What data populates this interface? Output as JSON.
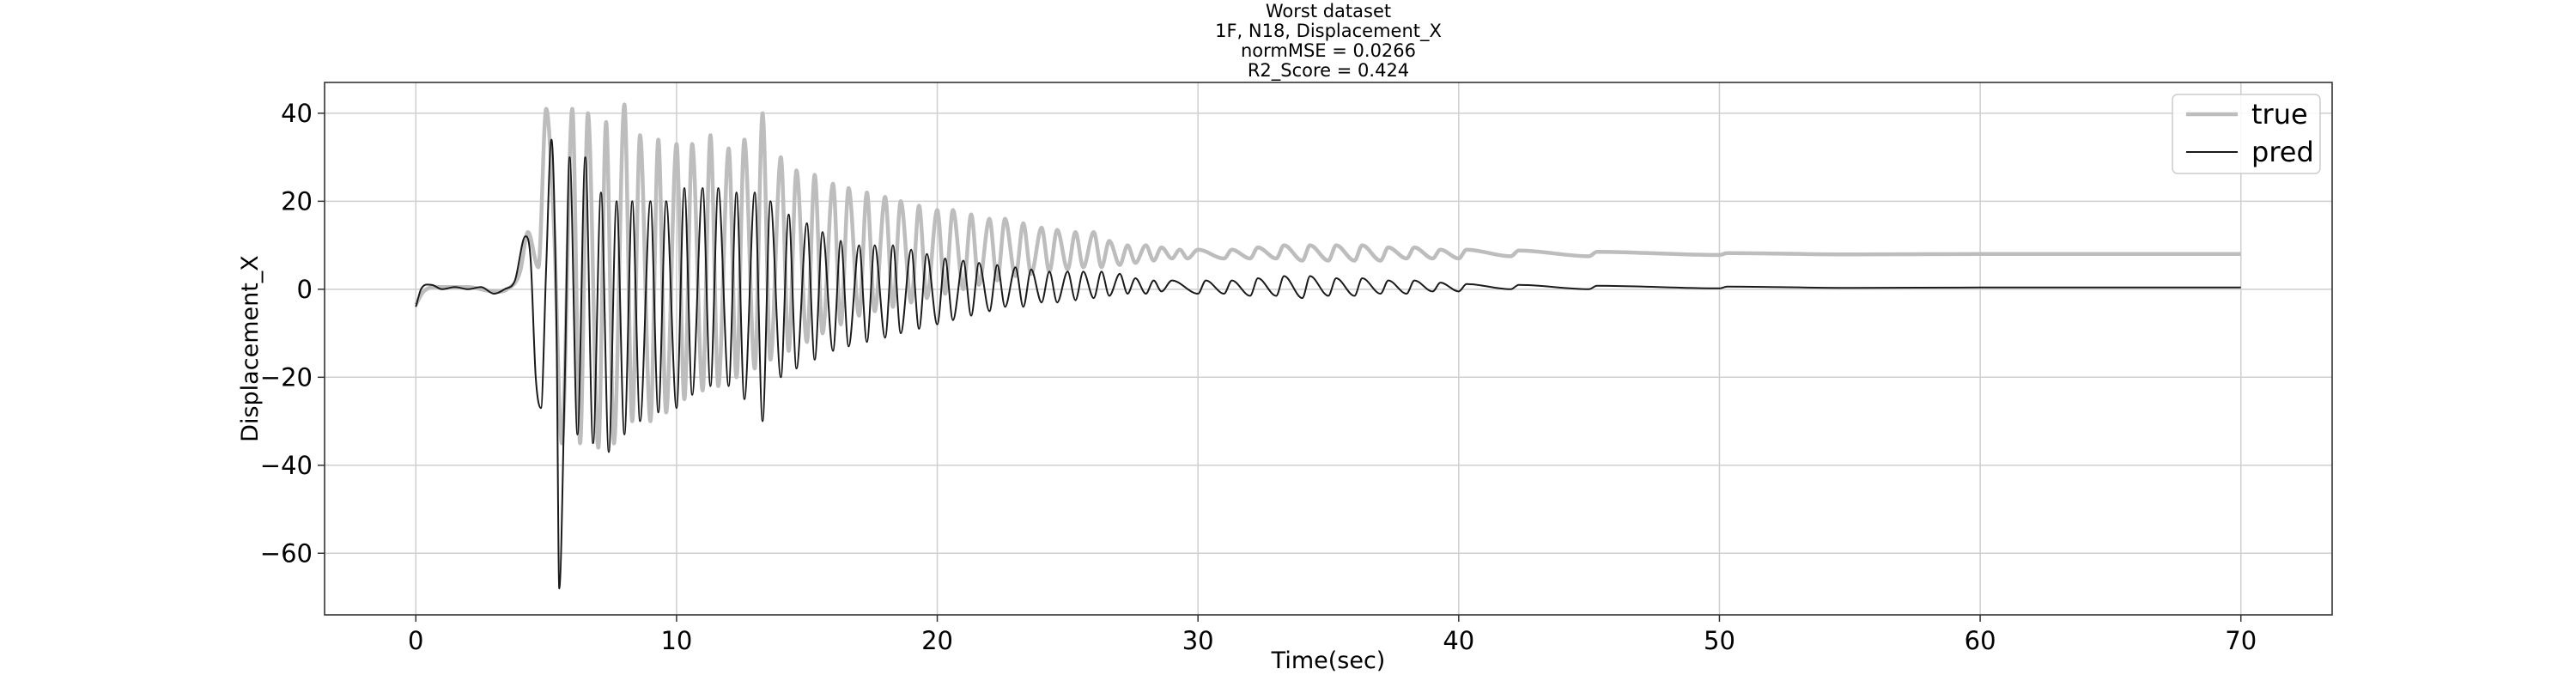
{
  "chart_data": {
    "type": "line",
    "title_lines": [
      "Worst dataset",
      "1F, N18, Displacement_X",
      "normMSE = 0.0266",
      "R2_Score = 0.424"
    ],
    "xlabel": "Time(sec)",
    "ylabel": "Displacement_X",
    "xlim": [
      -3.5,
      73.5
    ],
    "ylim": [
      -74,
      47
    ],
    "xticks": [
      0,
      10,
      20,
      30,
      40,
      50,
      60,
      70
    ],
    "yticks": [
      -60,
      -40,
      -20,
      0,
      20,
      40
    ],
    "grid": true,
    "legend_position": "top-right",
    "series": [
      {
        "name": "true",
        "color": "#bdbdbd",
        "points": [
          [
            0,
            -3.5
          ],
          [
            0.3,
            -0.5
          ],
          [
            1,
            0.5
          ],
          [
            2,
            0.5
          ],
          [
            3,
            -0.5
          ],
          [
            3.5,
            0
          ],
          [
            4,
            4
          ],
          [
            4.3,
            13
          ],
          [
            4.7,
            5
          ],
          [
            5,
            41
          ],
          [
            5.3,
            14
          ],
          [
            5.6,
            -35
          ],
          [
            6,
            41
          ],
          [
            6.3,
            -35
          ],
          [
            6.6,
            40
          ],
          [
            7,
            -36
          ],
          [
            7.3,
            38
          ],
          [
            7.6,
            -35
          ],
          [
            8,
            42
          ],
          [
            8.3,
            -30
          ],
          [
            8.6,
            35
          ],
          [
            9,
            -30
          ],
          [
            9.3,
            34
          ],
          [
            9.6,
            -28
          ],
          [
            10,
            33
          ],
          [
            10.3,
            -25
          ],
          [
            10.6,
            33
          ],
          [
            11,
            -23
          ],
          [
            11.3,
            35
          ],
          [
            11.6,
            -22
          ],
          [
            12,
            32
          ],
          [
            12.3,
            -20
          ],
          [
            12.6,
            34
          ],
          [
            13,
            -18
          ],
          [
            13.3,
            40
          ],
          [
            13.6,
            -16
          ],
          [
            14,
            30
          ],
          [
            14.3,
            -14
          ],
          [
            14.6,
            27
          ],
          [
            15,
            -12
          ],
          [
            15.3,
            26
          ],
          [
            15.6,
            -10
          ],
          [
            16,
            24
          ],
          [
            16.3,
            -8
          ],
          [
            16.6,
            23
          ],
          [
            17,
            -6
          ],
          [
            17.3,
            22
          ],
          [
            17.6,
            -5
          ],
          [
            18,
            21
          ],
          [
            18.3,
            -4
          ],
          [
            18.6,
            20
          ],
          [
            19,
            -3
          ],
          [
            19.3,
            19
          ],
          [
            19.6,
            -2
          ],
          [
            20,
            18
          ],
          [
            20.3,
            -1
          ],
          [
            20.6,
            18
          ],
          [
            21,
            0
          ],
          [
            21.3,
            17
          ],
          [
            21.6,
            1
          ],
          [
            22,
            16
          ],
          [
            22.3,
            2
          ],
          [
            22.6,
            16
          ],
          [
            23,
            3
          ],
          [
            23.3,
            15
          ],
          [
            23.6,
            3.5
          ],
          [
            24,
            14
          ],
          [
            24.3,
            4
          ],
          [
            24.6,
            13.5
          ],
          [
            25,
            4.5
          ],
          [
            25.3,
            13
          ],
          [
            25.6,
            5
          ],
          [
            26,
            13
          ],
          [
            26.3,
            5
          ],
          [
            26.6,
            11
          ],
          [
            27,
            5.5
          ],
          [
            27.3,
            10
          ],
          [
            27.6,
            6
          ],
          [
            28,
            10
          ],
          [
            28.3,
            6.5
          ],
          [
            28.6,
            9.5
          ],
          [
            29,
            7
          ],
          [
            29.3,
            9
          ],
          [
            29.6,
            7
          ],
          [
            30,
            9
          ],
          [
            31,
            7
          ],
          [
            31.3,
            9
          ],
          [
            32,
            7
          ],
          [
            32.3,
            9.5
          ],
          [
            33,
            7
          ],
          [
            33.3,
            10
          ],
          [
            34,
            6.5
          ],
          [
            34.3,
            10
          ],
          [
            35,
            6.5
          ],
          [
            35.3,
            10
          ],
          [
            36,
            6.5
          ],
          [
            36.3,
            10
          ],
          [
            37,
            6.5
          ],
          [
            37.3,
            9.5
          ],
          [
            38,
            7
          ],
          [
            38.3,
            9.5
          ],
          [
            39,
            7
          ],
          [
            39.3,
            9
          ],
          [
            40,
            7
          ],
          [
            40.3,
            9
          ],
          [
            42,
            7.5
          ],
          [
            42.3,
            8.8
          ],
          [
            45,
            7.5
          ],
          [
            45.3,
            8.5
          ],
          [
            50,
            7.8
          ],
          [
            50.3,
            8.2
          ],
          [
            55,
            7.9
          ],
          [
            60,
            8
          ],
          [
            65,
            8
          ],
          [
            70,
            8
          ]
        ]
      },
      {
        "name": "pred",
        "color": "#1a1a1a",
        "points": [
          [
            0,
            -4
          ],
          [
            0.2,
            0
          ],
          [
            0.6,
            1
          ],
          [
            1,
            0
          ],
          [
            1.5,
            0.5
          ],
          [
            2,
            0
          ],
          [
            2.5,
            0.5
          ],
          [
            3,
            -1
          ],
          [
            3.4,
            0
          ],
          [
            3.8,
            2
          ],
          [
            4.2,
            12
          ],
          [
            4.4,
            7
          ],
          [
            4.6,
            -20
          ],
          [
            4.8,
            -27
          ],
          [
            5,
            5
          ],
          [
            5.2,
            34
          ],
          [
            5.4,
            -10
          ],
          [
            5.5,
            -68
          ],
          [
            5.7,
            -25
          ],
          [
            5.9,
            30
          ],
          [
            6.2,
            -33
          ],
          [
            6.5,
            30
          ],
          [
            6.8,
            -35
          ],
          [
            7.1,
            22
          ],
          [
            7.4,
            -37
          ],
          [
            7.7,
            20
          ],
          [
            8,
            -33
          ],
          [
            8.3,
            20
          ],
          [
            8.6,
            -30
          ],
          [
            9,
            20
          ],
          [
            9.3,
            -28
          ],
          [
            9.6,
            20
          ],
          [
            10,
            -27
          ],
          [
            10.3,
            23
          ],
          [
            10.6,
            -24
          ],
          [
            11,
            23
          ],
          [
            11.3,
            -22
          ],
          [
            11.6,
            23
          ],
          [
            12,
            -22
          ],
          [
            12.3,
            22
          ],
          [
            12.6,
            -25
          ],
          [
            13,
            22
          ],
          [
            13.3,
            -30
          ],
          [
            13.6,
            20
          ],
          [
            14,
            -20
          ],
          [
            14.3,
            17
          ],
          [
            14.6,
            -18
          ],
          [
            15,
            15
          ],
          [
            15.3,
            -16
          ],
          [
            15.6,
            13
          ],
          [
            16,
            -14
          ],
          [
            16.3,
            11
          ],
          [
            16.6,
            -13
          ],
          [
            17,
            10
          ],
          [
            17.3,
            -12
          ],
          [
            17.6,
            10
          ],
          [
            18,
            -11
          ],
          [
            18.3,
            10
          ],
          [
            18.6,
            -10
          ],
          [
            19,
            9
          ],
          [
            19.3,
            -9
          ],
          [
            19.6,
            8
          ],
          [
            20,
            -8
          ],
          [
            20.3,
            7
          ],
          [
            20.6,
            -7
          ],
          [
            21,
            6.5
          ],
          [
            21.3,
            -6
          ],
          [
            21.6,
            6
          ],
          [
            22,
            -5
          ],
          [
            22.3,
            5.5
          ],
          [
            22.6,
            -4
          ],
          [
            23,
            5
          ],
          [
            23.3,
            -4
          ],
          [
            23.6,
            4.5
          ],
          [
            24,
            -3
          ],
          [
            24.3,
            4
          ],
          [
            24.6,
            -3
          ],
          [
            25,
            4
          ],
          [
            25.3,
            -2.5
          ],
          [
            25.6,
            4
          ],
          [
            26,
            -2
          ],
          [
            26.3,
            4
          ],
          [
            26.6,
            -1.5
          ],
          [
            27,
            3.5
          ],
          [
            27.3,
            -1
          ],
          [
            27.6,
            2.5
          ],
          [
            28,
            -1
          ],
          [
            28.3,
            2
          ],
          [
            28.6,
            -0.5
          ],
          [
            29,
            2
          ],
          [
            30,
            -1
          ],
          [
            30.3,
            2
          ],
          [
            31,
            -1
          ],
          [
            31.3,
            2
          ],
          [
            32,
            -1.5
          ],
          [
            32.3,
            2.5
          ],
          [
            33,
            -1.5
          ],
          [
            33.3,
            3
          ],
          [
            34,
            -2
          ],
          [
            34.3,
            3
          ],
          [
            35,
            -1.5
          ],
          [
            35.3,
            2.5
          ],
          [
            36,
            -1.5
          ],
          [
            36.3,
            2.5
          ],
          [
            37,
            -1
          ],
          [
            37.3,
            2
          ],
          [
            38,
            -1
          ],
          [
            38.3,
            2
          ],
          [
            39,
            -0.5
          ],
          [
            39.3,
            1.5
          ],
          [
            40,
            -0.5
          ],
          [
            40.3,
            1.2
          ],
          [
            42,
            0
          ],
          [
            42.3,
            1
          ],
          [
            45,
            0
          ],
          [
            45.3,
            0.8
          ],
          [
            50,
            0.2
          ],
          [
            50.3,
            0.6
          ],
          [
            55,
            0.3
          ],
          [
            60,
            0.4
          ],
          [
            65,
            0.4
          ],
          [
            70,
            0.4
          ]
        ]
      }
    ]
  }
}
